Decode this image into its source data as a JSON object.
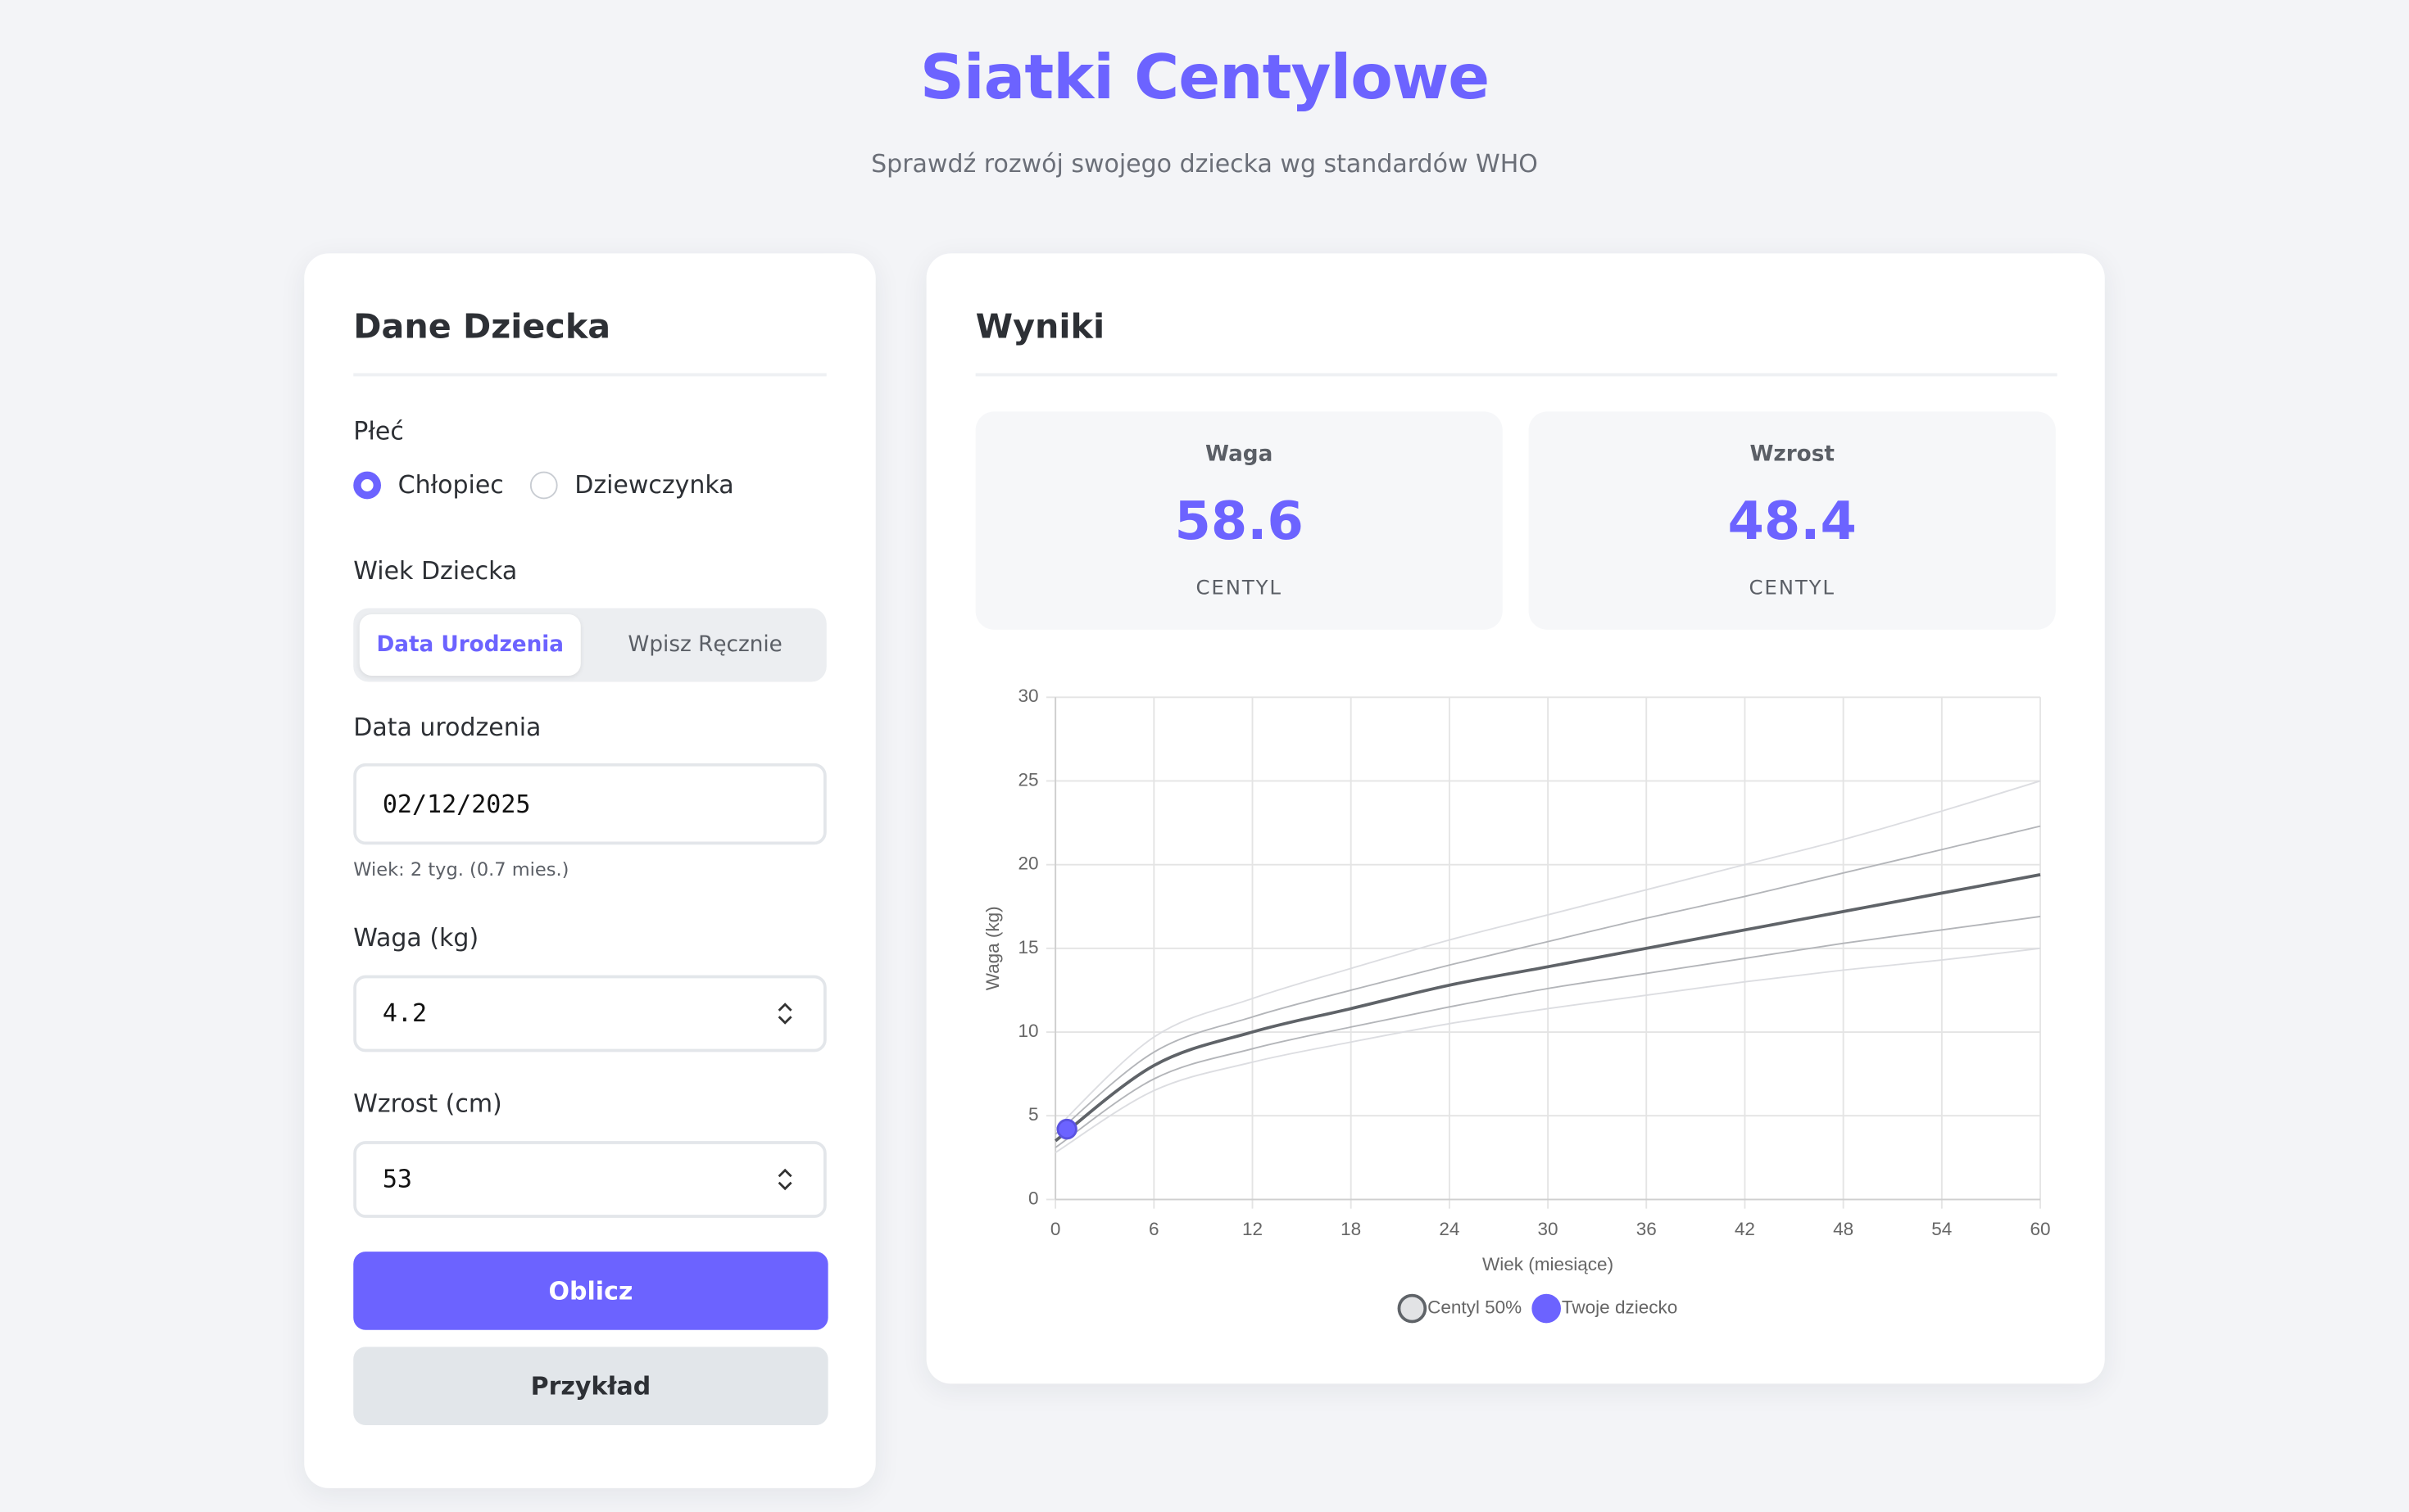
{
  "header": {
    "title": "Siatki Centylowe",
    "subtitle": "Sprawdź rozwój swojego dziecka wg standardów WHO"
  },
  "form": {
    "title": "Dane Dziecka",
    "sex_label": "Płeć",
    "sex_options": [
      "Chłopiec",
      "Dziewczynka"
    ],
    "age_label": "Wiek Dziecka",
    "age_tabs": [
      "Data Urodzenia",
      "Wpisz Ręcznie"
    ],
    "birth_label": "Data urodzenia",
    "birth_value": "02/12/2025",
    "age_hint": "Wiek: 2 tyg. (0.7 mies.)",
    "weight_label": "Waga (kg)",
    "weight_value": "4.2",
    "height_label": "Wzrost (cm)",
    "height_value": "53",
    "submit": "Oblicz",
    "example": "Przykład"
  },
  "results": {
    "title": "Wyniki",
    "stats": [
      {
        "label": "Waga",
        "value": "58.6",
        "unit": "CENTYL"
      },
      {
        "label": "Wzrost",
        "value": "48.4",
        "unit": "CENTYL"
      }
    ]
  },
  "chart_data": {
    "type": "line",
    "xlabel": "Wiek (miesiące)",
    "ylabel": "Waga (kg)",
    "x": [
      0,
      6,
      12,
      18,
      24,
      30,
      36,
      42,
      48,
      54,
      60
    ],
    "xlim": [
      0,
      60
    ],
    "ylim": [
      0,
      30
    ],
    "xticks": [
      0,
      6,
      12,
      18,
      24,
      30,
      36,
      42,
      48,
      54,
      60
    ],
    "yticks": [
      0,
      5,
      10,
      15,
      20,
      25,
      30
    ],
    "grid": true,
    "legend": "bottom",
    "series": [
      {
        "color": "#dcdde1",
        "values": [
          4.2,
          9.7,
          12.0,
          13.8,
          15.5,
          17.0,
          18.5,
          20.0,
          21.5,
          23.2,
          25.0
        ]
      },
      {
        "color": "#b3b5b9",
        "values": [
          3.9,
          8.8,
          10.9,
          12.5,
          14.0,
          15.4,
          16.8,
          18.1,
          19.5,
          20.9,
          22.3
        ]
      },
      {
        "color": "#b3b5b9",
        "values": [
          3.1,
          7.2,
          9.0,
          10.3,
          11.5,
          12.6,
          13.5,
          14.4,
          15.3,
          16.1,
          16.9
        ]
      },
      {
        "color": "#dcdde1",
        "values": [
          2.8,
          6.5,
          8.2,
          9.4,
          10.5,
          11.4,
          12.2,
          13.0,
          13.7,
          14.3,
          15.0
        ]
      },
      {
        "name": "Centyl 50%",
        "color": "#5f6368",
        "values": [
          3.5,
          8.0,
          10.0,
          11.4,
          12.8,
          13.9,
          15.0,
          16.1,
          17.2,
          18.3,
          19.4
        ]
      },
      {
        "name": "Twoje dziecko",
        "type": "scatter",
        "color": "#6c63ff",
        "x": [
          0.7
        ],
        "values": [
          4.2
        ]
      }
    ]
  }
}
